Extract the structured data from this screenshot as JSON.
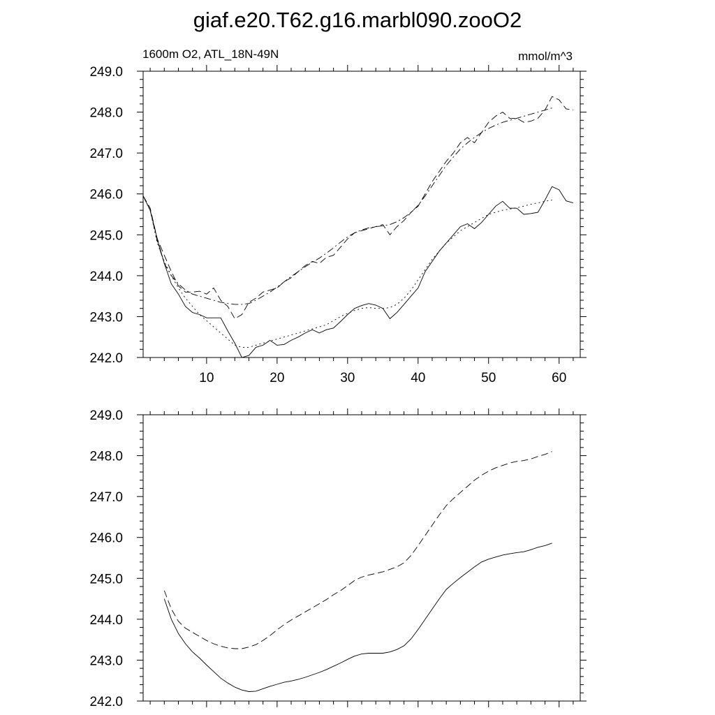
{
  "title": "giaf.e20.T62.g16.marbl090.zooO2",
  "chart_data": [
    {
      "type": "line",
      "title": "",
      "left_label": "1600m O2, ATL_18N-49N",
      "right_label": "mmol/m^3",
      "xlim": [
        1,
        63
      ],
      "ylim": [
        242.0,
        249.0
      ],
      "x_ticks": [
        10,
        20,
        30,
        40,
        50,
        60
      ],
      "x_tick_labels": [
        "10",
        "20",
        "30",
        "40",
        "50",
        "60"
      ],
      "y_ticks": [
        242,
        243,
        244,
        245,
        246,
        247,
        248,
        249
      ],
      "y_tick_labels": [
        "242.0",
        "243.0",
        "244.0",
        "245.0",
        "246.0",
        "247.0",
        "248.0",
        "249.0"
      ],
      "grid": false,
      "series": [
        {
          "style": "solid",
          "x": [
            1,
            2,
            3,
            4,
            5,
            6,
            7,
            8,
            9,
            10,
            11,
            12,
            13,
            14,
            15,
            16,
            17,
            18,
            19,
            20,
            21,
            22,
            23,
            24,
            25,
            26,
            27,
            28,
            29,
            30,
            31,
            32,
            33,
            34,
            35,
            36,
            37,
            38,
            39,
            40,
            41,
            42,
            43,
            44,
            45,
            46,
            47,
            48,
            49,
            50,
            51,
            52,
            53,
            54,
            55,
            56,
            57,
            58,
            59,
            60,
            61,
            62
          ],
          "values": [
            245.95,
            245.6,
            244.9,
            244.3,
            243.8,
            243.55,
            243.25,
            243.1,
            243.05,
            242.97,
            242.97,
            242.97,
            242.65,
            242.35,
            242.0,
            242.05,
            242.25,
            242.3,
            242.42,
            242.3,
            242.32,
            242.42,
            242.5,
            242.6,
            242.68,
            242.6,
            242.68,
            242.72,
            242.88,
            243.05,
            243.2,
            243.27,
            243.32,
            243.28,
            243.2,
            242.95,
            243.1,
            243.3,
            243.5,
            243.7,
            244.1,
            244.35,
            244.6,
            244.8,
            245.0,
            245.2,
            245.27,
            245.15,
            245.3,
            245.5,
            245.7,
            245.82,
            245.65,
            245.65,
            245.5,
            245.52,
            245.55,
            245.85,
            246.18,
            246.1,
            245.83,
            245.78
          ]
        },
        {
          "style": "dotted",
          "x": [
            1,
            2,
            3,
            4,
            5,
            6,
            7,
            8,
            9,
            10,
            11,
            12,
            13,
            14,
            15,
            16,
            17,
            18,
            19,
            20,
            21,
            22,
            23,
            24,
            25,
            26,
            27,
            28,
            29,
            30,
            31,
            32,
            33,
            34,
            35,
            36,
            37,
            38,
            39,
            40,
            41,
            42,
            43,
            44,
            45,
            46,
            47,
            48,
            49,
            50,
            51,
            52,
            53,
            54,
            55,
            56,
            57,
            58,
            59
          ],
          "values": [
            245.95,
            245.6,
            244.8,
            244.35,
            244.0,
            243.7,
            243.45,
            243.25,
            243.05,
            242.9,
            242.75,
            242.6,
            242.45,
            242.3,
            242.25,
            242.25,
            242.3,
            242.35,
            242.4,
            242.45,
            242.5,
            242.55,
            242.6,
            242.65,
            242.7,
            242.75,
            242.8,
            242.9,
            243.0,
            243.08,
            243.15,
            243.2,
            243.22,
            243.2,
            243.2,
            243.22,
            243.3,
            243.45,
            243.65,
            243.9,
            244.15,
            244.4,
            244.6,
            244.8,
            244.95,
            245.1,
            245.2,
            245.3,
            245.4,
            245.5,
            245.55,
            245.6,
            245.63,
            245.66,
            245.7,
            245.75,
            245.78,
            245.82,
            245.85
          ]
        },
        {
          "style": "dashed",
          "x": [
            1,
            2,
            3,
            4,
            5,
            6,
            7,
            8,
            9,
            10,
            11,
            12,
            13,
            14,
            15,
            16,
            17,
            18,
            19,
            20,
            21,
            22,
            23,
            24,
            25,
            26,
            27,
            28,
            29,
            30,
            31,
            32,
            33,
            34,
            35,
            36,
            37,
            38,
            39,
            40,
            41,
            42,
            43,
            44,
            45,
            46,
            47,
            48,
            49,
            50,
            51,
            52,
            53,
            54,
            55,
            56,
            57,
            58,
            59,
            60,
            61,
            62
          ],
          "values": [
            245.95,
            245.65,
            244.9,
            244.5,
            244.1,
            243.75,
            243.6,
            243.6,
            243.62,
            243.55,
            243.7,
            243.4,
            243.25,
            242.95,
            243.05,
            243.35,
            243.45,
            243.6,
            243.65,
            243.7,
            243.85,
            243.95,
            244.1,
            244.25,
            244.35,
            244.3,
            244.45,
            244.5,
            244.7,
            244.9,
            245.05,
            245.1,
            245.15,
            245.2,
            245.25,
            245.0,
            245.2,
            245.35,
            245.55,
            245.7,
            246.0,
            246.3,
            246.55,
            246.8,
            247.0,
            247.25,
            247.38,
            247.25,
            247.5,
            247.75,
            247.9,
            248.0,
            247.85,
            247.85,
            247.75,
            247.78,
            247.85,
            248.05,
            248.38,
            248.3,
            248.08,
            248.05
          ]
        },
        {
          "style": "dash-dot",
          "x": [
            1,
            2,
            3,
            4,
            5,
            6,
            7,
            8,
            9,
            10,
            11,
            12,
            13,
            14,
            15,
            16,
            17,
            18,
            19,
            20,
            21,
            22,
            23,
            24,
            25,
            26,
            27,
            28,
            29,
            30,
            31,
            32,
            33,
            34,
            35,
            36,
            37,
            38,
            39,
            40,
            41,
            42,
            43,
            44,
            45,
            46,
            47,
            48,
            49,
            50,
            51,
            52,
            53,
            54,
            55,
            56,
            57,
            58,
            59
          ],
          "values": [
            245.95,
            245.6,
            244.85,
            244.3,
            244.0,
            243.8,
            243.65,
            243.55,
            243.5,
            243.45,
            243.4,
            243.35,
            243.32,
            243.3,
            243.3,
            243.32,
            243.4,
            243.5,
            243.6,
            243.72,
            243.85,
            243.98,
            244.1,
            244.22,
            244.33,
            244.43,
            244.55,
            244.68,
            244.82,
            244.95,
            245.05,
            245.12,
            245.17,
            245.2,
            245.22,
            245.25,
            245.32,
            245.42,
            245.55,
            245.72,
            245.95,
            246.2,
            246.45,
            246.7,
            246.9,
            247.1,
            247.25,
            247.38,
            247.5,
            247.6,
            247.68,
            247.75,
            247.8,
            247.85,
            247.9,
            247.95,
            248.0,
            248.05,
            248.1
          ]
        }
      ]
    },
    {
      "type": "line",
      "title": "",
      "xlim": [
        1,
        63
      ],
      "ylim": [
        242.0,
        249.0
      ],
      "x_ticks": [
        10,
        20,
        30,
        40,
        50,
        60
      ],
      "y_ticks": [
        242,
        243,
        244,
        245,
        246,
        247,
        248,
        249
      ],
      "y_tick_labels": [
        "242.0",
        "243.0",
        "244.0",
        "245.0",
        "246.0",
        "247.0",
        "248.0",
        "249.0"
      ],
      "grid": false,
      "series": [
        {
          "style": "solid",
          "x": [
            4,
            5,
            6,
            7,
            8,
            9,
            10,
            11,
            12,
            13,
            14,
            15,
            16,
            17,
            18,
            19,
            20,
            21,
            22,
            23,
            24,
            25,
            26,
            27,
            28,
            29,
            30,
            31,
            32,
            33,
            34,
            35,
            36,
            37,
            38,
            39,
            40,
            41,
            42,
            43,
            44,
            45,
            46,
            47,
            48,
            49,
            50,
            51,
            52,
            53,
            54,
            55,
            56,
            57,
            58,
            59
          ],
          "values": [
            244.5,
            244.0,
            243.65,
            243.4,
            243.2,
            243.05,
            242.88,
            242.72,
            242.56,
            242.44,
            242.34,
            242.27,
            242.23,
            242.24,
            242.3,
            242.36,
            242.41,
            242.46,
            242.49,
            242.53,
            242.58,
            242.64,
            242.7,
            242.77,
            242.85,
            242.93,
            243.02,
            243.1,
            243.15,
            243.17,
            243.17,
            243.17,
            243.2,
            243.26,
            243.35,
            243.52,
            243.75,
            244.0,
            244.25,
            244.5,
            244.73,
            244.88,
            245.02,
            245.15,
            245.28,
            245.4,
            245.47,
            245.52,
            245.57,
            245.6,
            245.63,
            245.65,
            245.7,
            245.76,
            245.8,
            245.86
          ]
        },
        {
          "style": "dashed",
          "x": [
            4,
            5,
            6,
            7,
            8,
            9,
            10,
            11,
            12,
            13,
            14,
            15,
            16,
            17,
            18,
            19,
            20,
            21,
            22,
            23,
            24,
            25,
            26,
            27,
            28,
            29,
            30,
            31,
            32,
            33,
            34,
            35,
            36,
            37,
            38,
            39,
            40,
            41,
            42,
            43,
            44,
            45,
            46,
            47,
            48,
            49,
            50,
            51,
            52,
            53,
            54,
            55,
            56,
            57,
            58,
            59
          ],
          "values": [
            244.7,
            244.25,
            243.95,
            243.78,
            243.68,
            243.58,
            243.48,
            243.4,
            243.34,
            243.3,
            243.28,
            243.28,
            243.32,
            243.38,
            243.48,
            243.6,
            243.74,
            243.87,
            243.98,
            244.08,
            244.18,
            244.28,
            244.38,
            244.48,
            244.6,
            244.7,
            244.82,
            244.95,
            245.03,
            245.08,
            245.12,
            245.16,
            245.22,
            245.28,
            245.38,
            245.56,
            245.8,
            246.05,
            246.3,
            246.55,
            246.78,
            246.95,
            247.1,
            247.25,
            247.4,
            247.52,
            247.62,
            247.7,
            247.76,
            247.82,
            247.86,
            247.88,
            247.92,
            247.98,
            248.03,
            248.1
          ]
        }
      ]
    }
  ]
}
